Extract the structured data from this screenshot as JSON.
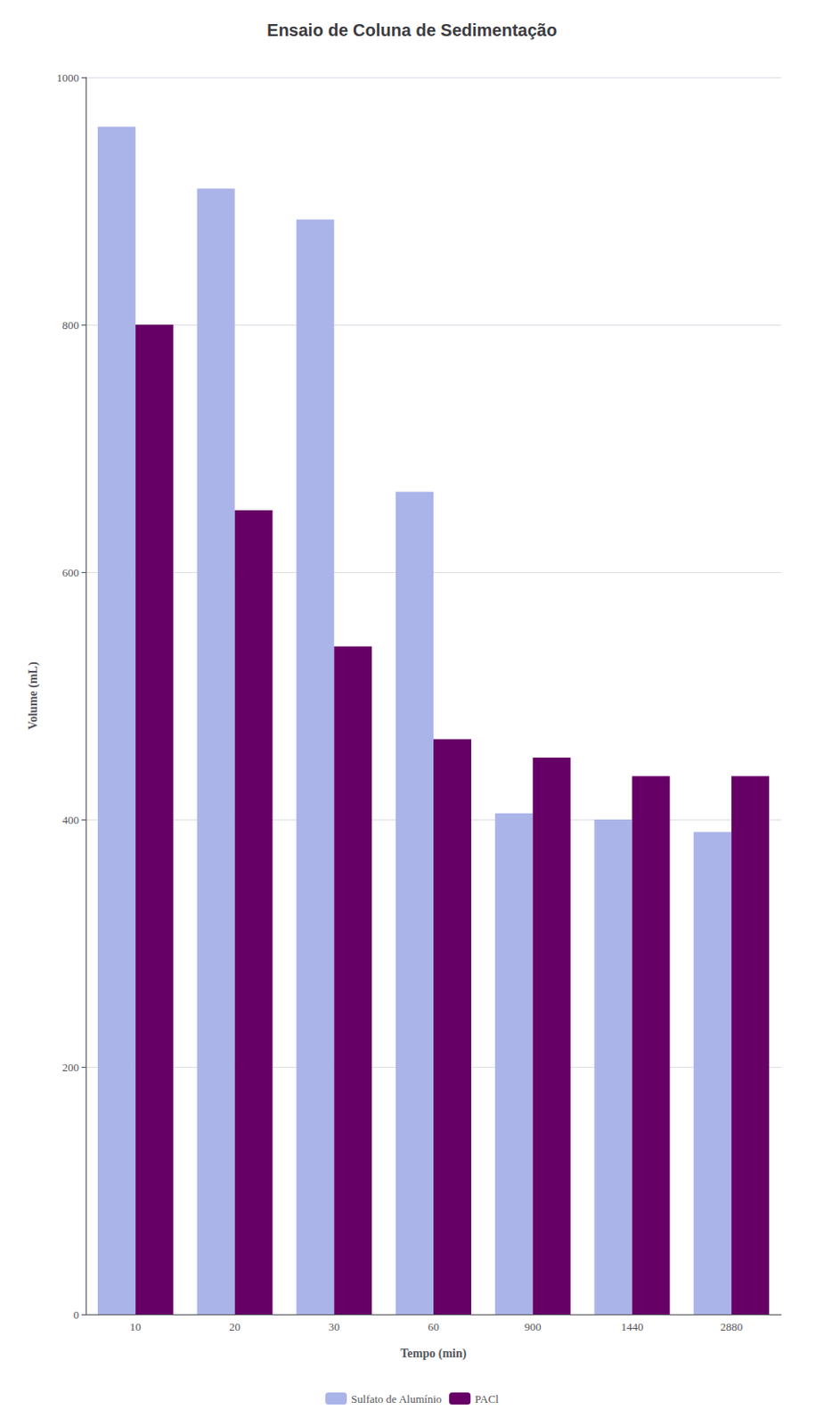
{
  "chart_data": {
    "type": "bar",
    "title": "Ensaio de Coluna de Sedimentação",
    "xlabel": "Tempo (min)",
    "ylabel": "Volume (mL)",
    "categories": [
      "10",
      "20",
      "30",
      "60",
      "900",
      "1440",
      "2880"
    ],
    "series": [
      {
        "name": "Sulfato de Alumínio",
        "color": "#aab4e8",
        "values": [
          960,
          910,
          885,
          665,
          405,
          400,
          390
        ]
      },
      {
        "name": "PACl",
        "color": "#660066",
        "values": [
          800,
          650,
          540,
          465,
          450,
          435,
          435
        ]
      }
    ],
    "ylim": [
      0,
      1000
    ],
    "yticks": [
      0,
      200,
      400,
      600,
      800,
      1000
    ],
    "grid": true,
    "legend": "bottom"
  }
}
